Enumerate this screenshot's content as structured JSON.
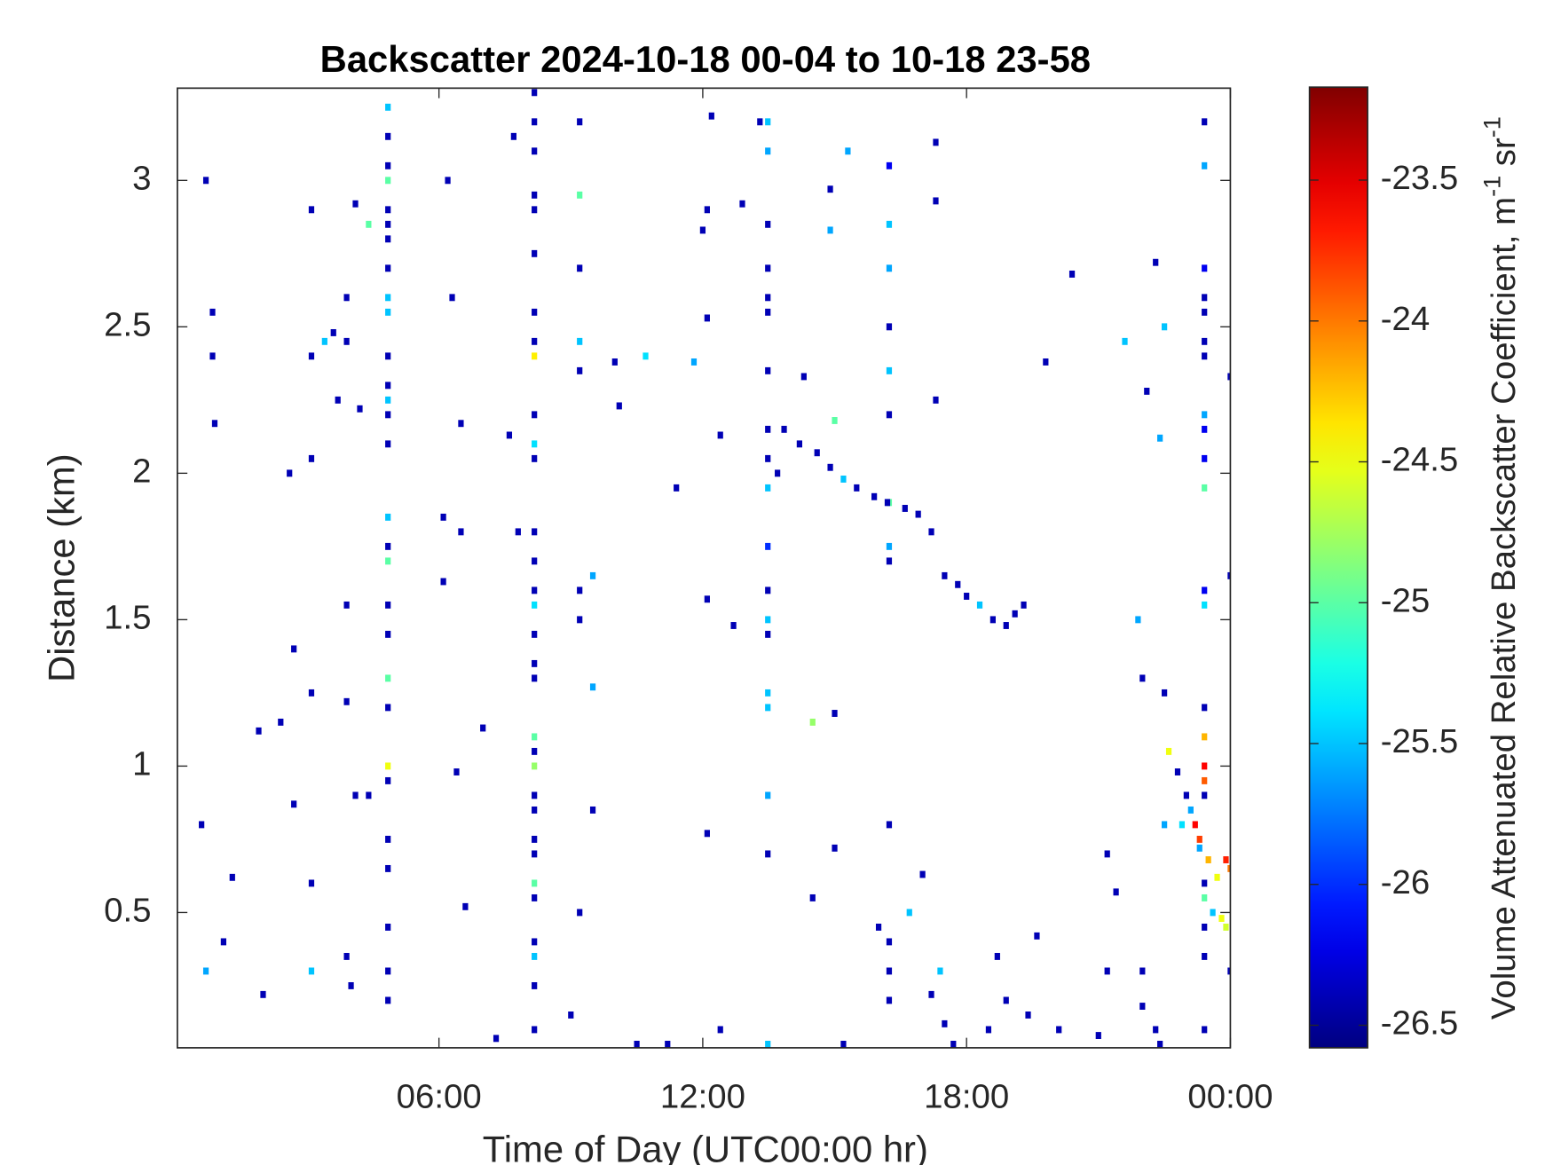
{
  "chart_data": {
    "type": "heatmap",
    "colormap": "jet",
    "title": "Backscatter 2024-10-18 00-04 to 10-18 23-58",
    "x_label": "Time of Day (UTC00:00 hr)",
    "y_label": "Distance (km)",
    "colorbar_label": [
      "Volume Attenuated Relative Backscatter Coefficient, m",
      "-1",
      " sr",
      "-1"
    ],
    "xlim": [
      0.05,
      24
    ],
    "xticks": [
      {
        "value": 6,
        "label": "06:00"
      },
      {
        "value": 12,
        "label": "12:00"
      },
      {
        "value": 18,
        "label": "18:00"
      },
      {
        "value": 24,
        "label": "00:00"
      }
    ],
    "ylim": [
      0.038,
      3.315
    ],
    "yticks": [
      0.5,
      1,
      1.5,
      2,
      2.5,
      3
    ],
    "clim": [
      -26.58,
      -23.17
    ],
    "cticks": [
      -23.5,
      -24,
      -24.5,
      -25,
      -25.5,
      -26,
      -26.5
    ],
    "x": [
      8.17,
      8.17,
      8.17,
      8.17,
      8.17,
      8.17,
      8.17,
      8.17,
      8.17,
      8.17,
      8.17,
      8.17,
      8.17,
      8.17,
      8.17,
      8.17,
      8.17,
      8.17,
      8.17,
      8.17,
      8.17,
      8.17,
      8.17,
      8.17,
      8.17,
      8.17,
      8.17,
      8.17,
      8.17,
      8.17,
      8.17,
      8.17,
      4.84,
      4.84,
      4.84,
      4.84,
      4.84,
      4.84,
      4.84,
      4.84,
      4.84,
      4.84,
      4.84,
      4.84,
      4.84,
      4.84,
      4.84,
      4.84,
      4.84,
      4.84,
      4.84,
      4.84,
      4.84,
      4.84,
      4.84,
      4.84,
      4.84,
      4.84,
      4.84,
      4.84,
      4.84,
      13.48,
      13.48,
      13.48,
      13.48,
      13.48,
      13.48,
      13.48,
      13.48,
      13.48,
      13.48,
      13.48,
      13.48,
      13.48,
      13.48,
      13.48,
      13.48,
      13.48,
      13.48,
      13.48,
      16.24,
      16.24,
      16.24,
      16.24,
      16.24,
      16.24,
      16.24,
      16.24,
      16.24,
      16.24,
      16.24,
      16.24,
      16.24,
      23.41,
      23.41,
      23.41,
      23.41,
      23.41,
      23.41,
      23.41,
      23.41,
      23.41,
      23.41,
      23.41,
      23.41,
      23.41,
      23.41,
      23.41,
      23.41,
      23.41,
      23.41,
      23.41,
      23.41,
      23.41,
      23.41,
      23.41,
      13.85,
      14.2,
      14.6,
      14.9,
      15.2,
      15.5,
      15.9,
      16.2,
      16.6,
      16.9,
      17.2,
      17.5,
      17.8,
      18.0,
      18.3,
      18.6,
      18.9,
      19.1,
      19.3,
      22.6,
      22.8,
      23.0,
      23.2,
      23.3,
      23.5,
      23.7,
      23.9,
      24.0,
      23.8,
      23.9,
      23.6,
      23.3,
      23.1,
      22.9,
      0.7,
      0.85,
      0.85,
      0.9,
      0.6,
      0.7,
      1.3,
      1.1,
      2.0,
      1.9,
      2.4,
      2.6,
      2.7,
      2.7,
      3.1,
      3.1,
      3.1,
      3.1,
      3.1,
      3.1,
      3.4,
      3.6,
      3.7,
      3.9,
      3.9,
      3.9,
      4.1,
      4.4,
      4.2,
      3.9,
      4.1,
      4.4,
      3.9,
      4.0,
      6.1,
      6.2,
      6.3,
      6.5,
      6.1,
      6.5,
      6.4,
      6.6,
      7.0,
      7.3,
      7.7,
      7.6,
      7.8,
      9.2,
      9.2,
      9.2,
      9.2,
      9.2,
      9.2,
      9.2,
      9.5,
      9.5,
      9.0,
      9.2,
      9.5,
      10.0,
      10.1,
      10.7,
      11.8,
      11.4,
      12.0,
      12.1,
      12.1,
      12.1,
      12.4,
      12.7,
      12.1,
      12.4,
      13.3,
      12.2,
      12.9,
      13.7,
      14.3,
      14.9,
      14.9,
      15.3,
      15.0,
      14.5,
      15.0,
      15.0,
      14.5,
      16.0,
      16.7,
      17.0,
      17.4,
      17.2,
      17.5,
      17.3,
      17.3,
      17.3,
      19.8,
      20.4,
      21.6,
      22.3,
      22.5,
      22.1,
      22.4,
      21.9,
      22.0,
      22.5,
      22.5,
      21.2,
      21.4,
      21.2,
      21.0,
      20.1,
      19.4,
      18.5,
      18.9,
      19.6,
      18.7,
      22.0,
      22.0,
      22.4,
      24.0,
      24.0,
      24.0,
      17.7,
      11.2,
      10.5,
      15.2,
      22.3
    ],
    "y": [
      3.3,
      3.2,
      3.1,
      2.95,
      2.9,
      2.75,
      2.55,
      2.45,
      2.4,
      2.2,
      2.1,
      2.05,
      1.8,
      1.7,
      1.6,
      1.55,
      1.45,
      1.35,
      1.3,
      1.1,
      1.05,
      1.0,
      0.9,
      0.85,
      0.75,
      0.7,
      0.6,
      0.55,
      0.4,
      0.35,
      0.25,
      0.1,
      3.25,
      3.15,
      3.05,
      3.0,
      2.9,
      2.85,
      2.8,
      2.7,
      2.6,
      2.55,
      2.4,
      2.3,
      2.25,
      2.2,
      2.1,
      1.85,
      1.75,
      1.7,
      1.55,
      1.45,
      1.3,
      1.2,
      1.0,
      0.95,
      0.75,
      0.65,
      0.45,
      0.3,
      0.2,
      3.2,
      3.1,
      2.85,
      2.7,
      2.6,
      2.55,
      2.35,
      2.15,
      2.05,
      1.95,
      1.75,
      1.6,
      1.5,
      1.45,
      1.25,
      1.2,
      0.9,
      0.7,
      0.05,
      3.05,
      2.85,
      2.7,
      2.5,
      2.35,
      2.2,
      1.9,
      1.75,
      1.7,
      0.8,
      0.4,
      0.3,
      0.2,
      3.2,
      3.05,
      2.7,
      2.6,
      2.55,
      2.45,
      2.4,
      2.2,
      2.15,
      2.05,
      1.95,
      1.6,
      1.55,
      1.2,
      1.1,
      1.0,
      0.95,
      0.9,
      0.6,
      0.55,
      0.45,
      0.35,
      0.1,
      2.15,
      2.1,
      2.07,
      2.02,
      1.98,
      1.95,
      1.92,
      1.9,
      1.88,
      1.86,
      1.8,
      1.65,
      1.62,
      1.58,
      1.55,
      1.5,
      1.48,
      1.52,
      1.55,
      1.05,
      0.98,
      0.9,
      0.8,
      0.75,
      0.68,
      0.62,
      0.68,
      0.65,
      0.48,
      0.45,
      0.5,
      0.72,
      0.85,
      0.8,
      3.0,
      2.55,
      2.4,
      2.17,
      0.8,
      0.3,
      0.62,
      0.4,
      0.22,
      1.12,
      1.15,
      2.0,
      1.4,
      0.87,
      2.9,
      2.4,
      2.05,
      1.25,
      0.6,
      0.3,
      2.45,
      2.48,
      2.25,
      2.6,
      2.45,
      1.55,
      2.92,
      2.85,
      2.22,
      1.22,
      0.9,
      0.9,
      0.35,
      0.25,
      1.63,
      3.0,
      2.6,
      2.17,
      1.85,
      1.8,
      0.98,
      0.52,
      1.13,
      0.07,
      3.15,
      2.13,
      1.8,
      3.2,
      2.95,
      2.7,
      2.45,
      2.35,
      1.6,
      1.5,
      1.65,
      1.27,
      0.15,
      0.5,
      0.85,
      2.38,
      2.23,
      2.4,
      2.38,
      1.95,
      2.83,
      2.9,
      2.53,
      1.57,
      2.13,
      1.48,
      0.77,
      0.1,
      3.2,
      3.22,
      2.92,
      2.0,
      2.33,
      2.97,
      2.83,
      3.1,
      2.18,
      1.15,
      1.18,
      0.72,
      0.55,
      0.45,
      0.5,
      0.63,
      0.3,
      0.22,
      0.12,
      3.13,
      2.93,
      2.25,
      2.38,
      2.68,
      2.45,
      2.72,
      2.5,
      2.28,
      2.12,
      1.5,
      1.3,
      1.25,
      0.8,
      0.7,
      0.57,
      0.3,
      0.08,
      0.1,
      0.15,
      0.1,
      0.2,
      0.42,
      0.35,
      0.3,
      0.18,
      0.05,
      2.33,
      1.65,
      0.3,
      0.05,
      0.05,
      0.05,
      0.05,
      0.1
    ],
    "values": [
      -26.4,
      -26.4,
      -26.4,
      -26.4,
      -26.4,
      -26.4,
      -26.4,
      -26.4,
      -24.4,
      -26.4,
      -25.4,
      -26.4,
      -26.4,
      -26.4,
      -26.4,
      -25.4,
      -26.4,
      -26.4,
      -26.4,
      -25.0,
      -26.4,
      -24.8,
      -26.4,
      -26.4,
      -26.4,
      -26.4,
      -25.0,
      -26.4,
      -26.4,
      -25.5,
      -26.4,
      -26.4,
      -25.5,
      -26.4,
      -26.4,
      -25.0,
      -26.4,
      -26.4,
      -26.4,
      -26.4,
      -25.5,
      -25.5,
      -26.4,
      -26.4,
      -25.5,
      -26.4,
      -26.4,
      -25.5,
      -26.4,
      -25.0,
      -26.4,
      -26.4,
      -25.0,
      -26.4,
      -24.5,
      -26.4,
      -26.4,
      -26.4,
      -26.4,
      -26.4,
      -26.4,
      -25.5,
      -25.6,
      -26.4,
      -26.4,
      -26.4,
      -26.4,
      -26.4,
      -26.4,
      -26.4,
      -25.5,
      -26.0,
      -26.4,
      -25.5,
      -26.4,
      -25.5,
      -25.5,
      -25.6,
      -26.4,
      -25.5,
      -26.2,
      -25.5,
      -25.6,
      -26.4,
      -25.5,
      -26.4,
      -25.0,
      -25.6,
      -26.4,
      -26.4,
      -26.4,
      -26.4,
      -26.4,
      -26.4,
      -25.6,
      -26.2,
      -26.4,
      -26.4,
      -26.4,
      -26.4,
      -25.6,
      -26.2,
      -26.2,
      -25.0,
      -26.2,
      -25.4,
      -26.4,
      -24.2,
      -23.6,
      -23.9,
      -26.4,
      -26.4,
      -25.0,
      -26.4,
      -26.4,
      -26.4,
      -26.4,
      -26.4,
      -26.4,
      -26.4,
      -25.5,
      -26.4,
      -26.4,
      -26.4,
      -26.4,
      -26.4,
      -26.4,
      -26.4,
      -26.4,
      -26.4,
      -25.5,
      -26.4,
      -26.4,
      -26.4,
      -26.4,
      -24.5,
      -26.4,
      -26.4,
      -23.6,
      -23.8,
      -24.2,
      -24.5,
      -23.7,
      -24.0,
      -24.5,
      -24.6,
      -25.5,
      -25.6,
      -25.6,
      -25.4,
      -26.4,
      -26.4,
      -26.4,
      -26.4,
      -26.4,
      -25.6,
      -26.4,
      -26.4,
      -26.4,
      -26.4,
      -26.4,
      -26.4,
      -26.4,
      -26.4,
      -26.4,
      -26.4,
      -26.4,
      -26.4,
      -26.4,
      -25.5,
      -25.5,
      -26.4,
      -26.4,
      -26.4,
      -26.4,
      -26.4,
      -26.4,
      -25.0,
      -26.4,
      -26.4,
      -26.4,
      -26.4,
      -26.4,
      -26.4,
      -26.4,
      -26.4,
      -26.4,
      -26.4,
      -26.4,
      -26.4,
      -26.4,
      -26.4,
      -26.4,
      -26.4,
      -26.4,
      -26.4,
      -26.4,
      -26.4,
      -25.0,
      -26.4,
      -25.5,
      -26.4,
      -26.4,
      -26.4,
      -25.6,
      -25.6,
      -26.4,
      -26.4,
      -26.4,
      -26.4,
      -26.4,
      -25.4,
      -25.6,
      -26.4,
      -26.4,
      -26.4,
      -26.4,
      -26.4,
      -26.4,
      -26.4,
      -26.4,
      -26.4,
      -26.4,
      -26.4,
      -26.4,
      -26.4,
      -26.4,
      -26.4,
      -25.6,
      -25.6,
      -25.0,
      -24.8,
      -26.4,
      -26.4,
      -26.4,
      -26.4,
      -25.5,
      -26.4,
      -25.5,
      -26.4,
      -26.4,
      -26.4,
      -26.4,
      -26.4,
      -26.4,
      -26.4,
      -25.5,
      -26.4,
      -25.5,
      -26.4,
      -25.6,
      -25.6,
      -26.4,
      -26.4,
      -25.6,
      -26.4,
      -26.4,
      -26.4,
      -26.4,
      -26.4,
      -26.4,
      -26.4,
      -26.4,
      -26.4,
      -26.4,
      -26.4,
      -26.4,
      -26.4,
      -26.4,
      -26.4,
      -26.4,
      -26.4,
      -26.4,
      -26.4,
      -26.4,
      -26.4
    ]
  }
}
